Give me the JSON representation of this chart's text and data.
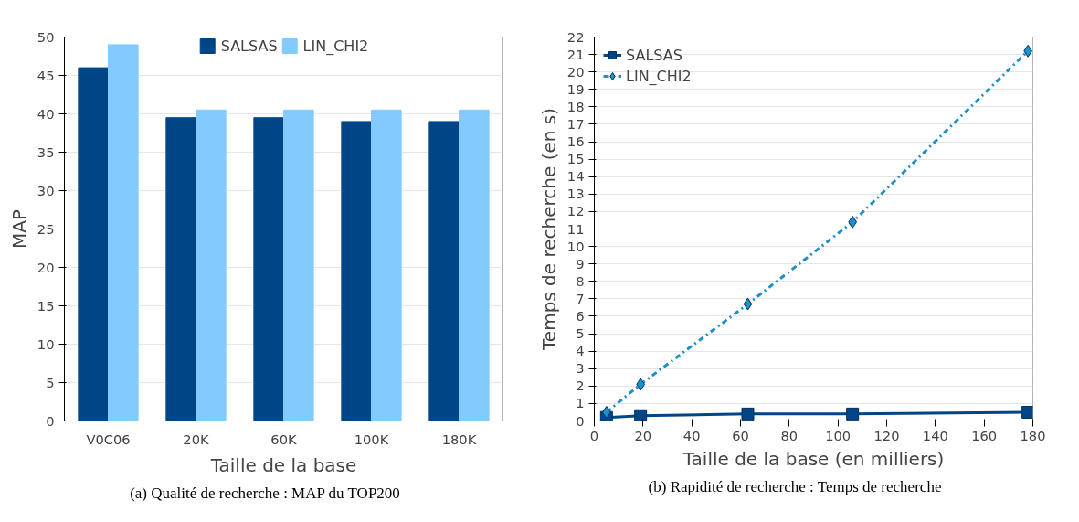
{
  "chart_data": [
    {
      "type": "bar",
      "categories": [
        "V0C06",
        "20K",
        "60K",
        "100K",
        "180K"
      ],
      "xlabel": "Taille de la base",
      "ylabel": "MAP",
      "ylim": [
        0,
        50
      ],
      "yticks": [
        0,
        5,
        10,
        15,
        20,
        25,
        30,
        35,
        40,
        45,
        50
      ],
      "grid": "y",
      "legend": "top",
      "series": [
        {
          "name": "SALSAS",
          "color": "#004586",
          "values": [
            46,
            39.5,
            39.5,
            39,
            39
          ]
        },
        {
          "name": "LIN_CHI2",
          "color": "#83caff",
          "values": [
            49,
            40.5,
            40.5,
            40.5,
            40.5
          ]
        }
      ],
      "annotations": [
        "(a)  Qualité de recherche : MAP du TOP200"
      ]
    },
    {
      "type": "line",
      "xlabel": "Taille de la base (en milliers)",
      "ylabel": "Temps de recherche (en s)",
      "xlim": [
        0,
        180
      ],
      "xticks": [
        0,
        20,
        40,
        60,
        80,
        100,
        120,
        140,
        160,
        180
      ],
      "ylim": [
        0,
        22
      ],
      "yticks": [
        0,
        1,
        2,
        3,
        4,
        5,
        6,
        7,
        8,
        9,
        10,
        11,
        12,
        13,
        14,
        15,
        16,
        17,
        18,
        19,
        20,
        21,
        22
      ],
      "grid": "y",
      "legend": "top left",
      "x": [
        5,
        19,
        63,
        106,
        178
      ],
      "series": [
        {
          "name": "SALSAS",
          "color": "#004586",
          "values": [
            0.2,
            0.3,
            0.4,
            0.4,
            0.5
          ],
          "marker": "square",
          "line_style": "solid"
        },
        {
          "name": "LIN_CHI2",
          "color": "#1e90c8",
          "values": [
            0.5,
            2.1,
            6.7,
            11.4,
            21.2
          ],
          "marker": "diamond",
          "line_style": "dashdot"
        }
      ],
      "annotations": [
        "(b)  Rapidité de recherche : Temps de recherche"
      ]
    }
  ]
}
